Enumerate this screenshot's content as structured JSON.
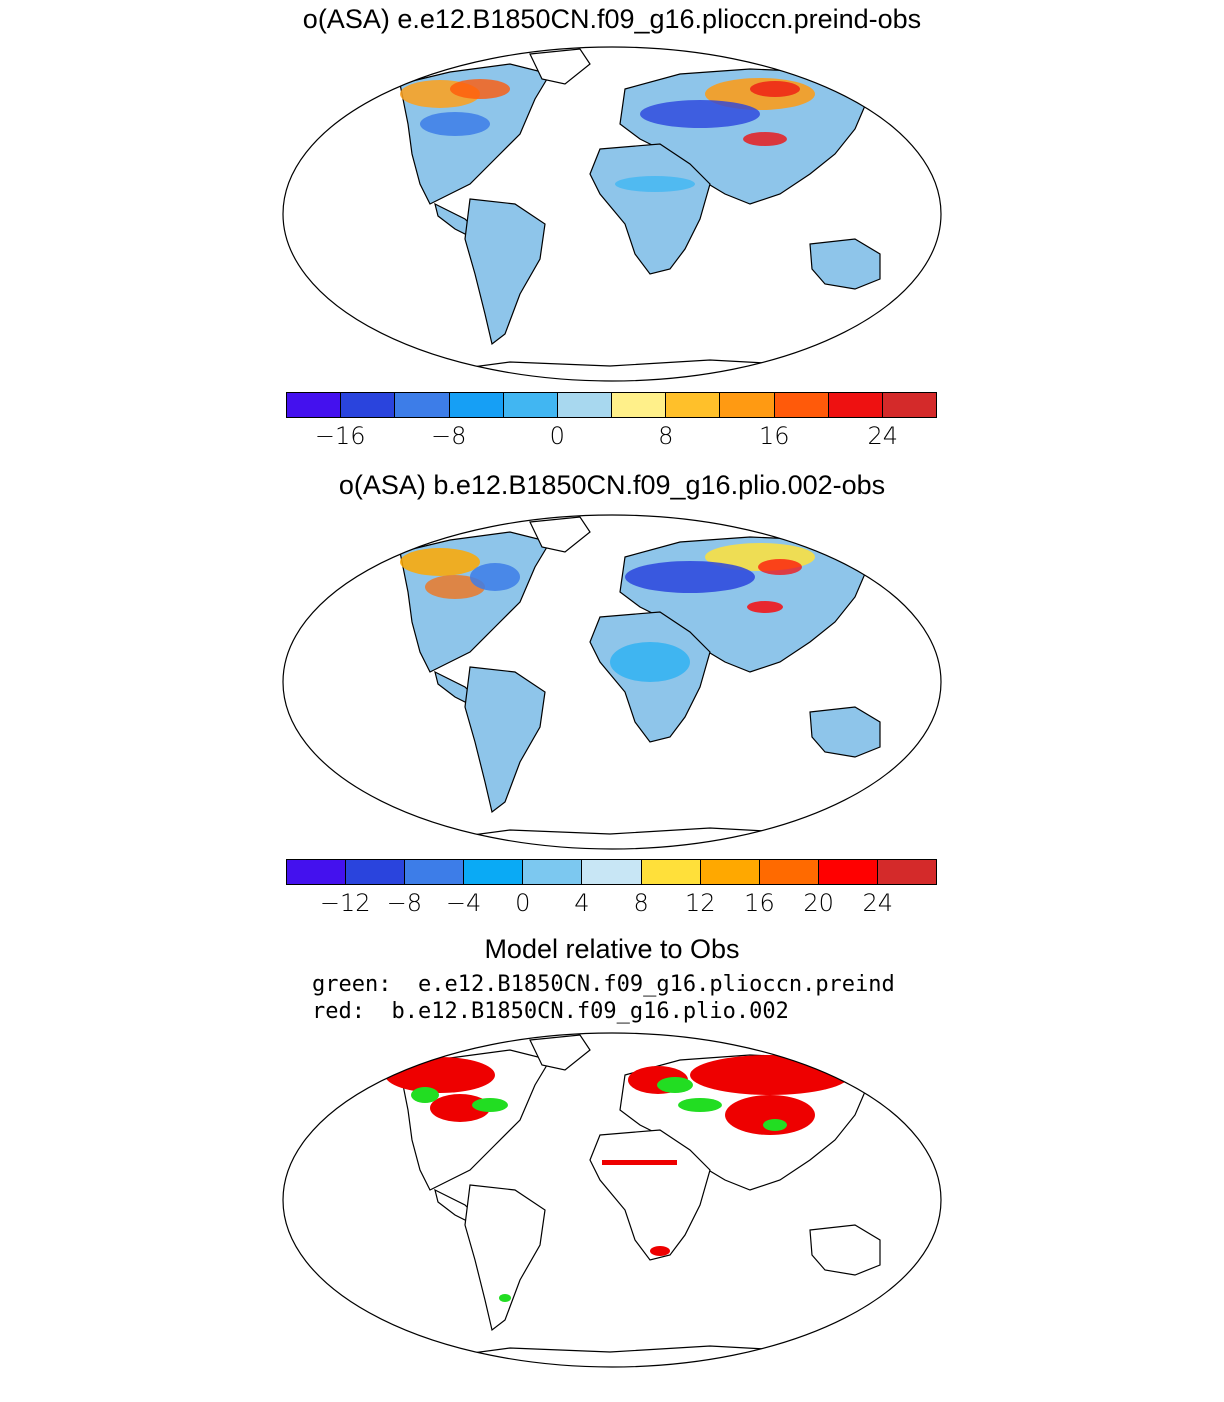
{
  "panels": {
    "panel1": {
      "title": "o(ASA) e.e12.B1850CN.f09_g16.plioccn.preind-obs"
    },
    "panel2": {
      "title": "o(ASA) b.e12.B1850CN.f09_g16.plio.002-obs"
    },
    "panel3": {
      "title": "Model relative to Obs",
      "legend_green": "green:  e.e12.B1850CN.f09_g16.plioccn.preind",
      "legend_red": "red:  b.e12.B1850CN.f09_g16.plio.002"
    }
  },
  "colorbar1": {
    "colors": [
      "#4411ee",
      "#2a44dd",
      "#3d7de8",
      "#169ff5",
      "#41b6f2",
      "#a8d8ef",
      "#fff08a",
      "#ffc02a",
      "#ff9a12",
      "#ff5a0a",
      "#ee1111",
      "#d42a2a"
    ],
    "ticks": [
      {
        "label": "−16",
        "index": 1
      },
      {
        "label": "−8",
        "index": 3
      },
      {
        "label": "0",
        "index": 5
      },
      {
        "label": "8",
        "index": 7
      },
      {
        "label": "16",
        "index": 9
      },
      {
        "label": "24",
        "index": 11
      }
    ]
  },
  "colorbar2": {
    "colors": [
      "#4411ee",
      "#2a44dd",
      "#3d7de8",
      "#0aaaf5",
      "#7cc8f0",
      "#c8e6f5",
      "#ffe03a",
      "#ffa800",
      "#ff6a00",
      "#ff0000",
      "#d42a2a"
    ],
    "ticks": [
      {
        "label": "−12",
        "index": 1
      },
      {
        "label": "−8",
        "index": 2
      },
      {
        "label": "−4",
        "index": 3
      },
      {
        "label": "0",
        "index": 4
      },
      {
        "label": "4",
        "index": 5
      },
      {
        "label": "8",
        "index": 6
      },
      {
        "label": "12",
        "index": 7
      },
      {
        "label": "16",
        "index": 8
      },
      {
        "label": "20",
        "index": 9
      },
      {
        "label": "24",
        "index": 10
      }
    ]
  },
  "colors": {
    "land_base": "#8ec5ea",
    "green": "#22dd22",
    "red": "#ee0000"
  }
}
